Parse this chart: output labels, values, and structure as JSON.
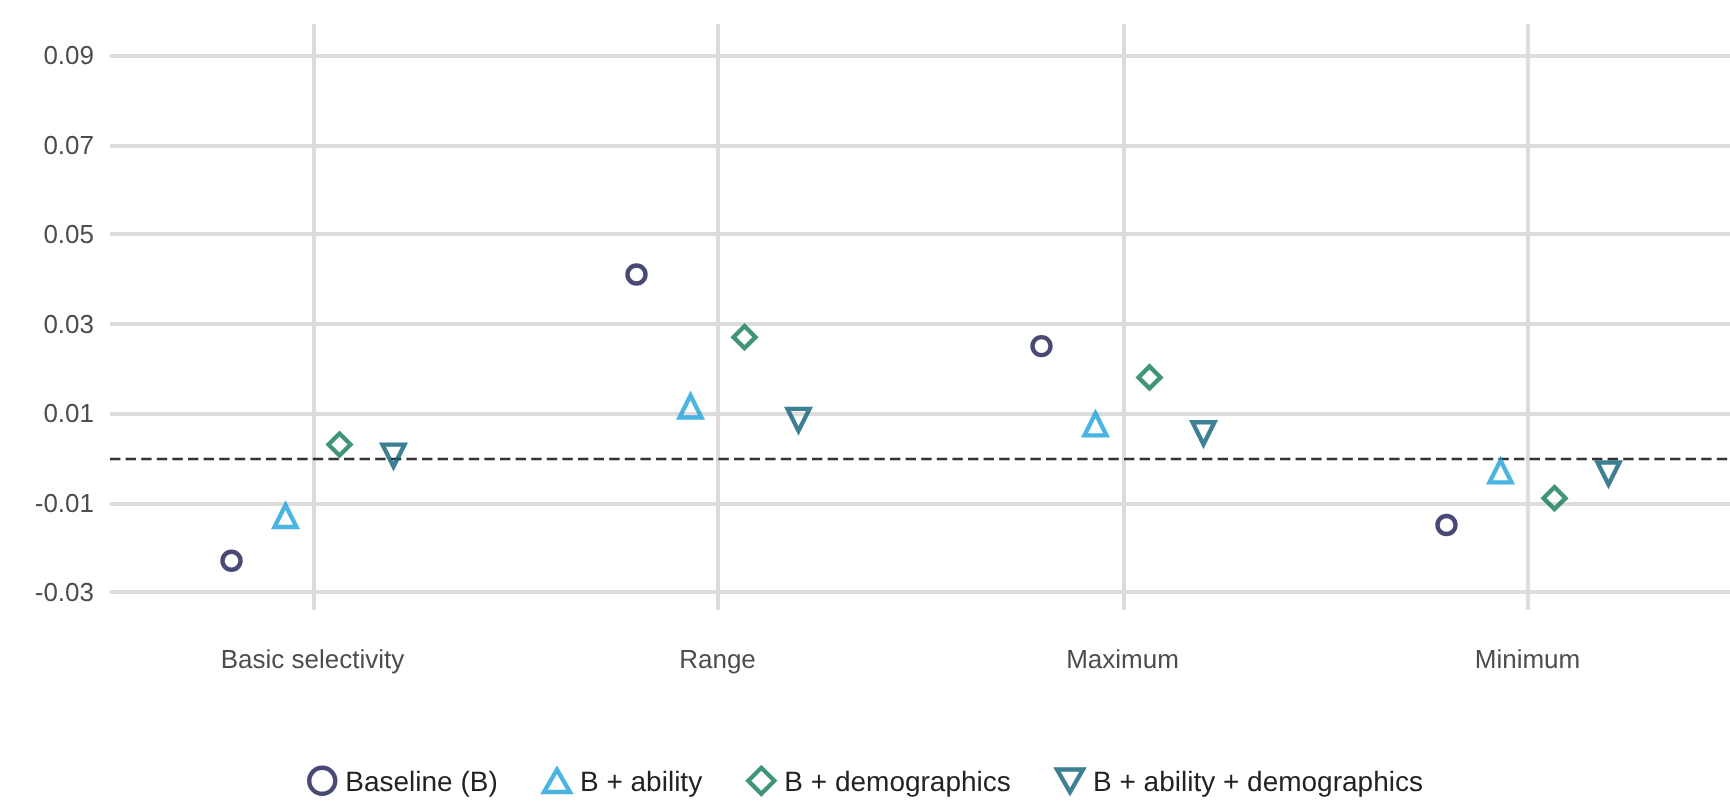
{
  "chart_data": {
    "type": "scatter",
    "categories": [
      "Basic selectivity",
      "Range",
      "Maximum",
      "Minimum"
    ],
    "series": [
      {
        "name": "Baseline (B)",
        "color": "#1c1c54",
        "marker": "circle",
        "values": [
          -0.023,
          0.041,
          0.025,
          -0.015
        ]
      },
      {
        "name": "B + ability",
        "color": "#1ba3d8",
        "marker": "triangle",
        "values": [
          -0.013,
          0.0115,
          0.0075,
          -0.003
        ]
      },
      {
        "name": "B + demographics",
        "color": "#117a55",
        "marker": "diamond",
        "values": [
          0.003,
          0.027,
          0.018,
          -0.009
        ]
      },
      {
        "name": "B + ability + demographics",
        "color": "#0d5f78",
        "marker": "triangle-down",
        "values": [
          0.0005,
          0.0085,
          0.0055,
          -0.0035
        ]
      }
    ],
    "ylim": [
      -0.034,
      0.097
    ],
    "yticks": [
      -0.03,
      -0.01,
      0.01,
      0.03,
      0.05,
      0.07,
      0.09
    ],
    "ref_lines": [
      {
        "axis": "y",
        "value": 0,
        "line_style": "dashed",
        "color": "#333333"
      }
    ],
    "grid": true,
    "legend": "bottom"
  }
}
